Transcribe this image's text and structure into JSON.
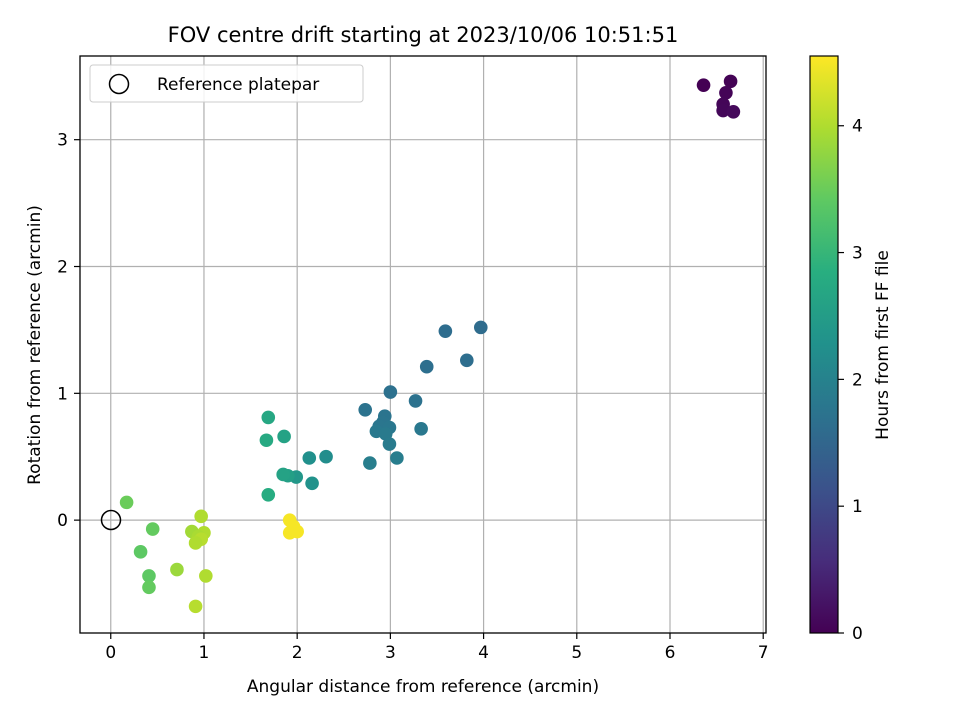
{
  "chart_data": {
    "type": "scatter",
    "title": "FOV centre drift starting at 2023/10/06 10:51:51",
    "xlabel": "Angular distance from reference (arcmin)",
    "ylabel": "Rotation from reference (arcmin)",
    "xlim": [
      -0.33,
      7.03
    ],
    "ylim": [
      -0.89,
      3.66
    ],
    "xticks": [
      "0",
      "1",
      "2",
      "3",
      "4",
      "5",
      "6",
      "7"
    ],
    "yticks": [
      "0",
      "1",
      "2",
      "3"
    ],
    "grid": true,
    "legend": {
      "position": "top-left",
      "entries": [
        "Reference platepar"
      ]
    },
    "reference_point": {
      "x": 0,
      "y": 0,
      "label": "Reference platepar"
    },
    "colorbar": {
      "label": "Hours from first FF file",
      "range": [
        0,
        4.55
      ],
      "ticks": [
        "0",
        "1",
        "2",
        "3",
        "4"
      ],
      "colormap": "viridis"
    },
    "points": [
      {
        "x": 6.36,
        "y": 3.43,
        "h": 0.0
      },
      {
        "x": 6.65,
        "y": 3.46,
        "h": 0.02
      },
      {
        "x": 6.6,
        "y": 3.37,
        "h": 0.04
      },
      {
        "x": 6.57,
        "y": 3.28,
        "h": 0.06
      },
      {
        "x": 6.57,
        "y": 3.23,
        "h": 0.08
      },
      {
        "x": 6.68,
        "y": 3.22,
        "h": 0.1
      },
      {
        "x": 3.97,
        "y": 1.52,
        "h": 1.6
      },
      {
        "x": 3.59,
        "y": 1.49,
        "h": 1.62
      },
      {
        "x": 3.82,
        "y": 1.26,
        "h": 1.64
      },
      {
        "x": 3.39,
        "y": 1.21,
        "h": 1.66
      },
      {
        "x": 3.0,
        "y": 1.01,
        "h": 1.68
      },
      {
        "x": 3.27,
        "y": 0.94,
        "h": 1.7
      },
      {
        "x": 2.73,
        "y": 0.87,
        "h": 1.72
      },
      {
        "x": 2.94,
        "y": 0.82,
        "h": 1.74
      },
      {
        "x": 2.92,
        "y": 0.77,
        "h": 1.76
      },
      {
        "x": 2.88,
        "y": 0.74,
        "h": 1.78
      },
      {
        "x": 2.99,
        "y": 0.73,
        "h": 1.8
      },
      {
        "x": 3.33,
        "y": 0.72,
        "h": 1.82
      },
      {
        "x": 2.85,
        "y": 0.7,
        "h": 1.84
      },
      {
        "x": 2.95,
        "y": 0.68,
        "h": 1.86
      },
      {
        "x": 2.99,
        "y": 0.6,
        "h": 1.88
      },
      {
        "x": 3.07,
        "y": 0.49,
        "h": 1.9
      },
      {
        "x": 2.78,
        "y": 0.45,
        "h": 1.92
      },
      {
        "x": 2.31,
        "y": 0.5,
        "h": 2.2
      },
      {
        "x": 2.13,
        "y": 0.49,
        "h": 2.25
      },
      {
        "x": 2.16,
        "y": 0.29,
        "h": 2.3
      },
      {
        "x": 1.99,
        "y": 0.34,
        "h": 2.4
      },
      {
        "x": 1.86,
        "y": 0.66,
        "h": 2.6
      },
      {
        "x": 1.9,
        "y": 0.35,
        "h": 2.55
      },
      {
        "x": 1.85,
        "y": 0.36,
        "h": 2.6
      },
      {
        "x": 1.69,
        "y": 0.81,
        "h": 2.7
      },
      {
        "x": 1.67,
        "y": 0.63,
        "h": 2.75
      },
      {
        "x": 1.69,
        "y": 0.2,
        "h": 2.8
      },
      {
        "x": 0.17,
        "y": 0.14,
        "h": 3.5
      },
      {
        "x": 0.45,
        "y": -0.07,
        "h": 3.45
      },
      {
        "x": 0.32,
        "y": -0.25,
        "h": 3.4
      },
      {
        "x": 0.41,
        "y": -0.44,
        "h": 3.4
      },
      {
        "x": 0.41,
        "y": -0.53,
        "h": 3.45
      },
      {
        "x": 0.71,
        "y": -0.39,
        "h": 3.85
      },
      {
        "x": 0.87,
        "y": -0.09,
        "h": 3.9
      },
      {
        "x": 0.97,
        "y": 0.03,
        "h": 4.0
      },
      {
        "x": 1.0,
        "y": -0.1,
        "h": 4.0
      },
      {
        "x": 0.94,
        "y": -0.13,
        "h": 3.95
      },
      {
        "x": 0.97,
        "y": -0.15,
        "h": 4.05
      },
      {
        "x": 0.91,
        "y": -0.18,
        "h": 4.0
      },
      {
        "x": 1.02,
        "y": -0.44,
        "h": 4.0
      },
      {
        "x": 0.91,
        "y": -0.68,
        "h": 4.05
      },
      {
        "x": 1.92,
        "y": 0.0,
        "h": 4.5
      },
      {
        "x": 1.96,
        "y": -0.05,
        "h": 4.5
      },
      {
        "x": 2.0,
        "y": -0.09,
        "h": 4.5
      },
      {
        "x": 1.92,
        "y": -0.1,
        "h": 4.5
      }
    ]
  }
}
